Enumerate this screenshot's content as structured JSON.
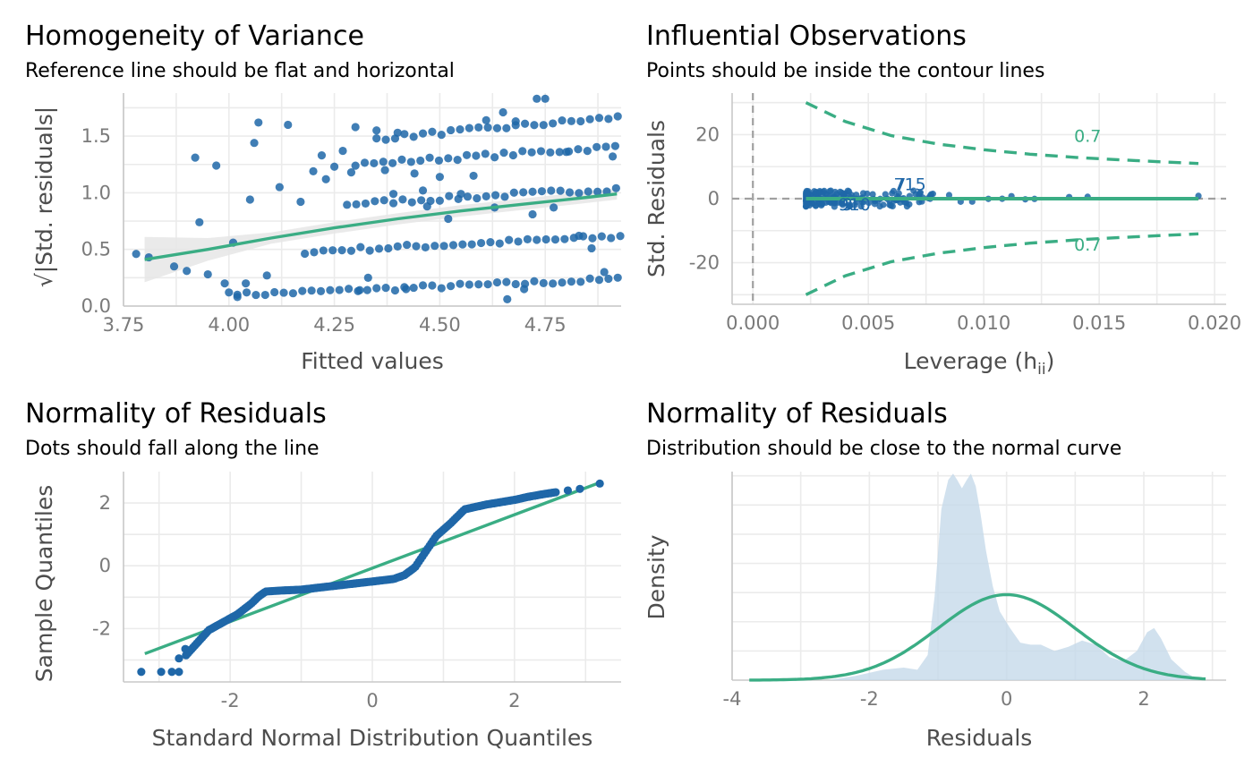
{
  "colors": {
    "points": "#1f67a8",
    "reference": "#3aad84",
    "ribbon": "#e6e6e6",
    "density_fill": "#c5d9ea",
    "grid": "#ebebeb",
    "axis": "#c8c8c8"
  },
  "chart_data": [
    {
      "type": "scatter",
      "title": "Homogeneity of Variance",
      "subtitle": "Reference line should be flat and horizontal",
      "xlabel": "Fitted values",
      "ylabel": "√|Std. residuals|",
      "xlim": [
        3.75,
        4.93
      ],
      "ylim": [
        0.0,
        1.88
      ],
      "xticks": [
        "3.75",
        "4.00",
        "4.25",
        "4.50",
        "4.75"
      ],
      "yticks": [
        "0.0",
        "0.5",
        "1.0",
        "1.5"
      ],
      "grid": true,
      "series": [
        {
          "role": "points",
          "points": [
            [
              3.78,
              0.46
            ],
            [
              3.81,
              0.43
            ],
            [
              3.87,
              0.35
            ],
            [
              3.9,
              0.31
            ],
            [
              3.92,
              1.31
            ],
            [
              3.93,
              0.74
            ],
            [
              3.95,
              0.28
            ],
            [
              3.97,
              1.24
            ],
            [
              3.99,
              0.2
            ],
            [
              4.0,
              0.12
            ],
            [
              4.01,
              0.56
            ],
            [
              4.02,
              0.1
            ],
            [
              4.04,
              0.2
            ],
            [
              4.05,
              0.94
            ],
            [
              4.06,
              1.44
            ],
            [
              4.07,
              1.62
            ],
            [
              4.09,
              0.27
            ],
            [
              4.12,
              1.05
            ],
            [
              4.14,
              1.6
            ],
            [
              4.17,
              0.92
            ],
            [
              4.2,
              1.19
            ],
            [
              4.22,
              1.33
            ],
            [
              4.23,
              1.12
            ],
            [
              4.25,
              1.23
            ],
            [
              4.27,
              1.37
            ],
            [
              4.29,
              1.18
            ],
            [
              4.3,
              1.58
            ],
            [
              4.31,
              0.14
            ],
            [
              4.33,
              0.25
            ],
            [
              4.35,
              1.55
            ],
            [
              4.37,
              1.2
            ],
            [
              4.39,
              0.99
            ],
            [
              4.4,
              1.53
            ],
            [
              4.42,
              0.15
            ],
            [
              4.44,
              1.17
            ],
            [
              4.46,
              1.02
            ],
            [
              4.47,
              0.88
            ],
            [
              4.5,
              1.14
            ],
            [
              4.52,
              0.77
            ],
            [
              4.55,
              0.99
            ],
            [
              4.58,
              1.15
            ],
            [
              4.61,
              1.64
            ],
            [
              4.63,
              0.87
            ],
            [
              4.65,
              1.71
            ],
            [
              4.66,
              0.06
            ],
            [
              4.68,
              1.63
            ],
            [
              4.7,
              0.15
            ],
            [
              4.72,
              0.81
            ],
            [
              4.73,
              1.83
            ],
            [
              4.75,
              1.83
            ],
            [
              4.77,
              0.87
            ],
            [
              4.8,
              1.36
            ],
            [
              4.83,
              0.62
            ],
            [
              4.86,
              0.51
            ],
            [
              4.89,
              0.3
            ],
            [
              4.91,
              1.32
            ]
          ]
        },
        {
          "role": "smoother",
          "x": [
            3.8,
            3.95,
            4.1,
            4.25,
            4.4,
            4.55,
            4.7,
            4.85,
            4.92
          ],
          "y": [
            0.41,
            0.5,
            0.6,
            0.69,
            0.77,
            0.84,
            0.9,
            0.96,
            0.99
          ]
        }
      ]
    },
    {
      "type": "scatter",
      "title": "Influential Observations",
      "subtitle": "Points should be inside the contour lines",
      "xlabel": "Leverage (h",
      "xlabel_sub": "ii",
      "xlabel_suffix": ")",
      "ylabel": "Std. Residuals",
      "xlim": [
        -0.0009,
        0.0205
      ],
      "ylim": [
        -33,
        33
      ],
      "xticks": [
        "0.000",
        "0.005",
        "0.010",
        "0.015",
        "0.020"
      ],
      "yticks": [
        "-20",
        "0",
        "20"
      ],
      "grid": true,
      "contour_label": "0.7",
      "contour_labels": [
        {
          "text": "0.7",
          "x": 0.0145,
          "y": 17.8
        },
        {
          "text": "0.7",
          "x": 0.0145,
          "y": -16.2
        }
      ],
      "contour": {
        "x": [
          0.0023,
          0.004,
          0.006,
          0.008,
          0.01,
          0.012,
          0.014,
          0.016,
          0.018,
          0.0193
        ],
        "y": [
          30,
          24.1,
          19.7,
          17.1,
          15.3,
          13.9,
          12.9,
          12.1,
          11.4,
          11.0
        ]
      },
      "point_labels": [
        {
          "text": "9",
          "x": 0.0041,
          "y": -3.6
        },
        {
          "text": "910",
          "x": 0.0044,
          "y": -3.6
        },
        {
          "text": "7",
          "x": 0.0064,
          "y": 2.7
        },
        {
          "text": "715",
          "x": 0.0068,
          "y": 2.7
        }
      ]
    },
    {
      "type": "scatter",
      "title": "Normality of Residuals",
      "subtitle": "Dots should fall along the line",
      "xlabel": "Standard Normal Distribution Quantiles",
      "ylabel": "Sample Quantiles",
      "xlim": [
        -3.5,
        3.5
      ],
      "ylim": [
        -3.7,
        3.0
      ],
      "xticks": [
        "-2",
        "0",
        "2"
      ],
      "yticks": [
        "-2",
        "0",
        "2"
      ],
      "grid": true,
      "reference_line": {
        "x": [
          -3.2,
          3.2
        ],
        "y": [
          -2.8,
          2.65
        ]
      },
      "sample_curve": {
        "x": [
          -2.62,
          -2.5,
          -2.3,
          -2.1,
          -1.9,
          -1.7,
          -1.6,
          -1.5,
          -1.3,
          -1.0,
          -0.5,
          0.0,
          0.3,
          0.45,
          0.6,
          0.75,
          0.9,
          1.1,
          1.3,
          1.6,
          2.0,
          2.2,
          2.4,
          2.6
        ],
        "y": [
          -2.85,
          -2.55,
          -2.05,
          -1.8,
          -1.55,
          -1.2,
          -0.98,
          -0.82,
          -0.79,
          -0.76,
          -0.63,
          -0.5,
          -0.42,
          -0.3,
          -0.05,
          0.45,
          0.95,
          1.35,
          1.8,
          1.95,
          2.1,
          2.2,
          2.28,
          2.35
        ]
      },
      "extra_points": [
        [
          -3.25,
          -3.38
        ],
        [
          -2.97,
          -3.38
        ],
        [
          -2.82,
          -3.38
        ],
        [
          -2.72,
          -3.38
        ],
        [
          -2.72,
          -2.95
        ],
        [
          -2.63,
          -2.65
        ],
        [
          2.75,
          2.4
        ],
        [
          2.92,
          2.45
        ],
        [
          3.2,
          2.62
        ]
      ]
    },
    {
      "type": "area",
      "title": "Normality of Residuals",
      "subtitle": "Distribution should be close to the normal curve",
      "xlabel": "Residuals",
      "ylabel": "Density",
      "xlim": [
        -4.0,
        3.2
      ],
      "ylim": [
        0,
        1.0
      ],
      "xticks": [
        "-4",
        "-2",
        "0",
        "2"
      ],
      "yticks": [],
      "grid": true,
      "empirical_density": {
        "x": [
          -2.6,
          -2.2,
          -1.8,
          -1.5,
          -1.3,
          -1.15,
          -1.05,
          -0.95,
          -0.85,
          -0.78,
          -0.72,
          -0.65,
          -0.58,
          -0.52,
          -0.45,
          -0.38,
          -0.3,
          -0.2,
          -0.1,
          0.05,
          0.2,
          0.35,
          0.5,
          0.7,
          0.9,
          1.1,
          1.3,
          1.5,
          1.7,
          1.9,
          2.05,
          2.15,
          2.25,
          2.4,
          2.6,
          2.8
        ],
        "y": [
          0.0,
          0.02,
          0.05,
          0.06,
          0.05,
          0.12,
          0.4,
          0.82,
          0.96,
          0.99,
          0.96,
          0.92,
          0.96,
          0.99,
          0.93,
          0.8,
          0.62,
          0.45,
          0.33,
          0.25,
          0.18,
          0.17,
          0.17,
          0.14,
          0.16,
          0.19,
          0.17,
          0.11,
          0.09,
          0.14,
          0.23,
          0.25,
          0.2,
          0.1,
          0.04,
          0.0
        ]
      },
      "normal_curve": {
        "mean": 0.0,
        "sd": 1.0,
        "peak": 0.41,
        "from": -3.75,
        "to": 2.9
      }
    }
  ]
}
